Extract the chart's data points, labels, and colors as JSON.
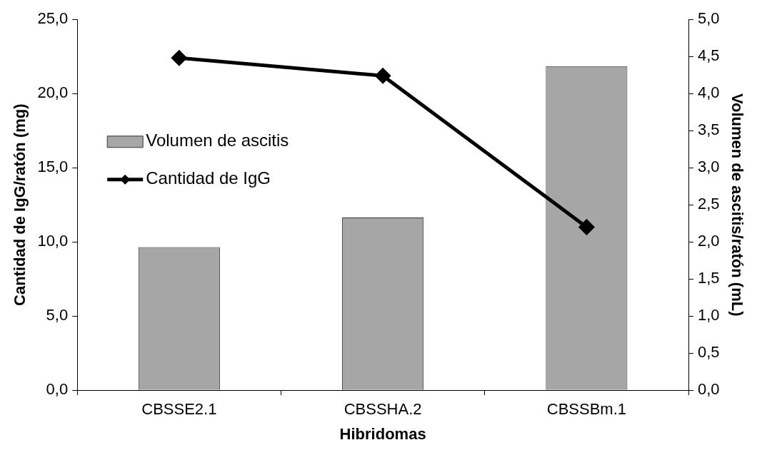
{
  "chart_data": {
    "type": "bar",
    "categories": [
      "CBSSE2.1",
      "CBSSHA.2",
      "CBSSBm.1"
    ],
    "xlabel": "Hibridomas",
    "ylabel": "Cantidad de IgG/ratón (mg)",
    "y2label": "Volumen de ascitis/ratón (mL)",
    "series": [
      {
        "name": "Volumen de ascitis",
        "type": "bar",
        "axis": "y2",
        "color": "#a6a6a6",
        "values": [
          1.93,
          2.33,
          4.37
        ]
      },
      {
        "name": "Cantidad de IgG",
        "type": "line",
        "axis": "y",
        "color": "#000000",
        "marker": "diamond",
        "values": [
          22.4,
          21.2,
          11.0
        ]
      }
    ],
    "ylim": [
      0,
      25
    ],
    "yticks": [
      {
        "value": 0,
        "label": "0,0"
      },
      {
        "value": 5,
        "label": "5,0"
      },
      {
        "value": 10,
        "label": "10,0"
      },
      {
        "value": 15,
        "label": "15,0"
      },
      {
        "value": 20,
        "label": "20,0"
      },
      {
        "value": 25,
        "label": "25,0"
      }
    ],
    "y2lim": [
      0,
      5
    ],
    "y2ticks": [
      {
        "value": 0,
        "label": "0,0"
      },
      {
        "value": 0.5,
        "label": "0,5"
      },
      {
        "value": 1,
        "label": "1,0"
      },
      {
        "value": 1.5,
        "label": "1,5"
      },
      {
        "value": 2,
        "label": "2,0"
      },
      {
        "value": 2.5,
        "label": "2,5"
      },
      {
        "value": 3,
        "label": "3,0"
      },
      {
        "value": 3.5,
        "label": "3,5"
      },
      {
        "value": 4,
        "label": "4,0"
      },
      {
        "value": 4.5,
        "label": "4,5"
      },
      {
        "value": 5,
        "label": "5,0"
      }
    ],
    "grid": false,
    "legend": "left"
  }
}
